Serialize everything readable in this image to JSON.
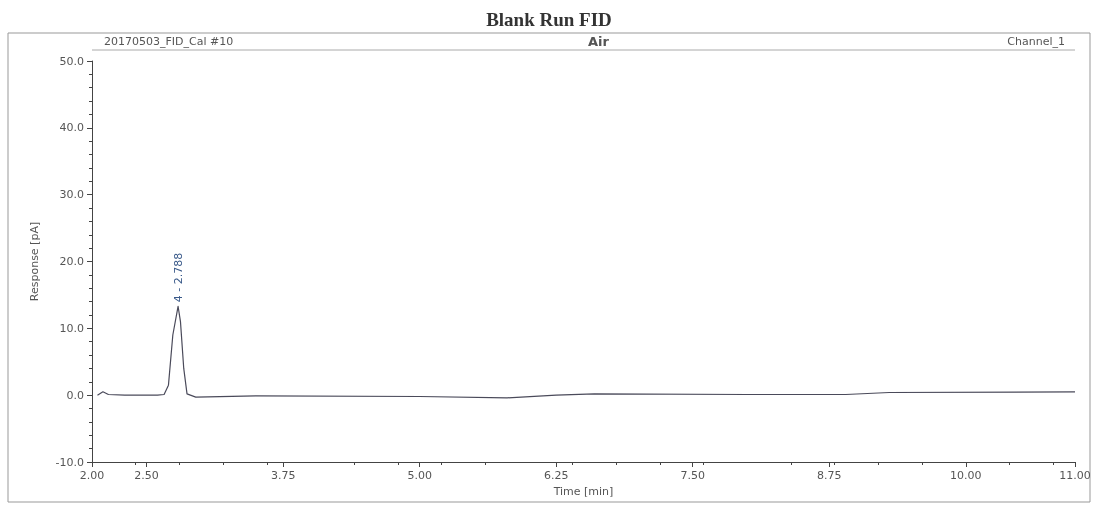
{
  "chart_data": {
    "type": "line",
    "title": "Blank Run FID",
    "xlabel": "Time [min]",
    "ylabel": "Response [pA]",
    "annotations": [
      "20170503_FID_Cal #10",
      "Air",
      "Channel_1",
      {
        "text": "4 - 2.788",
        "x": 2.788,
        "y": 13.3
      }
    ],
    "series": [
      {
        "color": "#4a4a5a",
        "x": [
          2.05,
          2.1,
          2.15,
          2.3,
          2.6,
          2.66,
          2.7,
          2.74,
          2.788,
          2.81,
          2.84,
          2.87,
          2.95,
          3.5,
          5.0,
          5.8,
          6.25,
          6.6,
          8.0,
          8.9,
          9.3,
          11.0
        ],
        "values": [
          0.0,
          0.5,
          0.1,
          0.0,
          0.0,
          0.1,
          1.5,
          9.0,
          13.3,
          11.0,
          4.0,
          0.2,
          -0.3,
          -0.1,
          -0.2,
          -0.4,
          0.0,
          0.2,
          0.1,
          0.1,
          0.4,
          0.5
        ]
      }
    ],
    "xlim": [
      2.0,
      11.0
    ],
    "xticks": [
      {
        "value": 2,
        "label": "2.00"
      },
      {
        "value": 2.5,
        "label": "2.50"
      },
      {
        "value": 3.75,
        "label": "3.75"
      },
      {
        "value": 5,
        "label": "5.00"
      },
      {
        "value": 6.25,
        "label": "6.25"
      },
      {
        "value": 7.5,
        "label": "7.50"
      },
      {
        "value": 8.75,
        "label": "8.75"
      },
      {
        "value": 10,
        "label": "10.00"
      },
      {
        "value": 11,
        "label": "11.00"
      }
    ],
    "ylim": [
      -10,
      50
    ],
    "yticks": [
      {
        "value": -10,
        "label": "-10.0"
      },
      {
        "value": 0,
        "label": "0.0"
      },
      {
        "value": 10,
        "label": "10.0"
      },
      {
        "value": 20,
        "label": "20.0"
      },
      {
        "value": 30,
        "label": "30.0"
      },
      {
        "value": 40,
        "label": "40.0"
      },
      {
        "value": 50,
        "label": "50.0"
      }
    ],
    "grid": false,
    "marker": "none",
    "line_style": "solid"
  }
}
